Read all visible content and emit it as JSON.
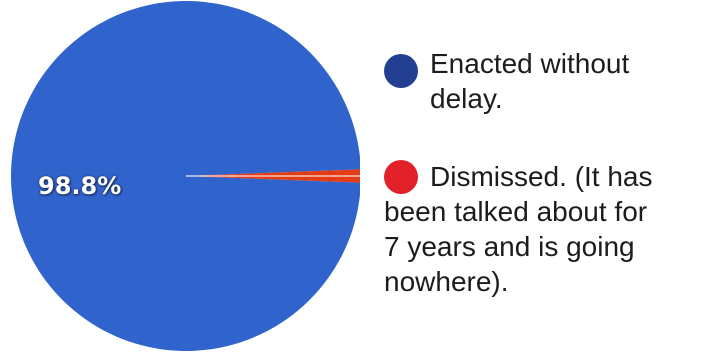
{
  "chart_data": {
    "type": "pie",
    "slices": [
      {
        "label": "Enacted without\ndelay.",
        "value": 98.8,
        "color": "#3163cc"
      },
      {
        "label": "Dismissed. (It has\n  been talked about for\n7 years and is going\nnowhere).",
        "value": 1.2,
        "color": "#e23c14"
      }
    ],
    "data_labels": [
      "98.8%"
    ],
    "legend": {
      "placement": "right"
    }
  },
  "legend_colors": [
    "#233f92",
    "#e3212b"
  ]
}
